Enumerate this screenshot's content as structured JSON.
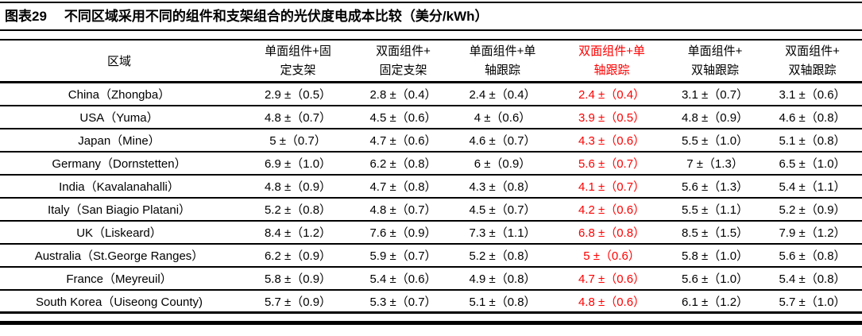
{
  "accent_color": "#FF0000",
  "header": {
    "figure_label": "图表29",
    "title": "不同区域采用不同的组件和支架组合的光伏度电成本比较（美分/kWh）"
  },
  "table": {
    "unit": "美分/kWh",
    "region_header": "区域",
    "highlight_column_index": 3,
    "columns": [
      {
        "label": "单面组件+固\n定支架",
        "highlight": false
      },
      {
        "label": "双面组件+\n固定支架",
        "highlight": false
      },
      {
        "label": "单面组件+单\n轴跟踪",
        "highlight": false
      },
      {
        "label": "双面组件+单\n轴跟踪",
        "highlight": true
      },
      {
        "label": "单面组件+\n双轴跟踪",
        "highlight": false
      },
      {
        "label": "双面组件+\n双轴跟踪",
        "highlight": false
      }
    ],
    "rows": [
      {
        "region": "China（Zhongba）",
        "values": [
          "2.9 ±（0.5）",
          "2.8 ±（0.4）",
          "2.4 ±（0.4）",
          "2.4 ±（0.4）",
          "3.1 ±（0.7）",
          "3.1 ±（0.6）"
        ]
      },
      {
        "region": "USA（Yuma）",
        "values": [
          "4.8 ±（0.7）",
          "4.5 ±（0.6）",
          "4 ±（0.6）",
          "3.9 ±（0.5）",
          "4.8 ±（0.9）",
          "4.6 ±（0.8）"
        ]
      },
      {
        "region": "Japan（Mine）",
        "values": [
          "5 ±（0.7）",
          "4.7 ±（0.6）",
          "4.6 ±（0.7）",
          "4.3 ±（0.6）",
          "5.5 ±（1.0）",
          "5.1 ±（0.8）"
        ]
      },
      {
        "region": "Germany（Dornstetten）",
        "values": [
          "6.9 ±（1.0）",
          "6.2 ±（0.8）",
          "6 ±（0.9）",
          "5.6 ±（0.7）",
          "7 ±（1.3）",
          "6.5 ±（1.0）"
        ]
      },
      {
        "region": "India（Kavalanahalli）",
        "values": [
          "4.8 ±（0.9）",
          "4.7 ±（0.8）",
          "4.3 ±（0.8）",
          "4.1 ±（0.7）",
          "5.6 ±（1.3）",
          "5.4 ±（1.1）"
        ]
      },
      {
        "region": "Italy（San Biagio Platani）",
        "values": [
          "5.2 ±（0.8）",
          "4.8 ±（0.7）",
          "4.5 ±（0.7）",
          "4.2 ±（0.6）",
          "5.5 ±（1.1）",
          "5.2 ±（0.9）"
        ]
      },
      {
        "region": "UK（Liskeard）",
        "values": [
          "8.4 ±（1.2）",
          "7.6 ±（0.9）",
          "7.3 ±（1.1）",
          "6.8 ±（0.8）",
          "8.5 ±（1.5）",
          "7.9 ±（1.2）"
        ]
      },
      {
        "region": "Australia（St.George Ranges）",
        "values": [
          "6.2 ±（0.9）",
          "5.9 ±（0.7）",
          "5.2 ±（0.8）",
          "5 ±（0.6）",
          "5.8 ±（1.0）",
          "5.6 ±（0.8）"
        ]
      },
      {
        "region": "France（Meyreuil）",
        "values": [
          "5.8 ±（0.9）",
          "5.4 ±（0.6）",
          "4.9 ±（0.8）",
          "4.7 ±（0.6）",
          "5.6 ±（1.0）",
          "5.4 ±（0.8）"
        ]
      },
      {
        "region": "South Korea（Uiseong County)",
        "values": [
          "5.7 ±（0.9）",
          "5.3 ±（0.7）",
          "5.1 ±（0.8）",
          "4.8 ±（0.6）",
          "6.1 ±（1.2）",
          "5.7 ±（1.0）"
        ]
      }
    ]
  }
}
